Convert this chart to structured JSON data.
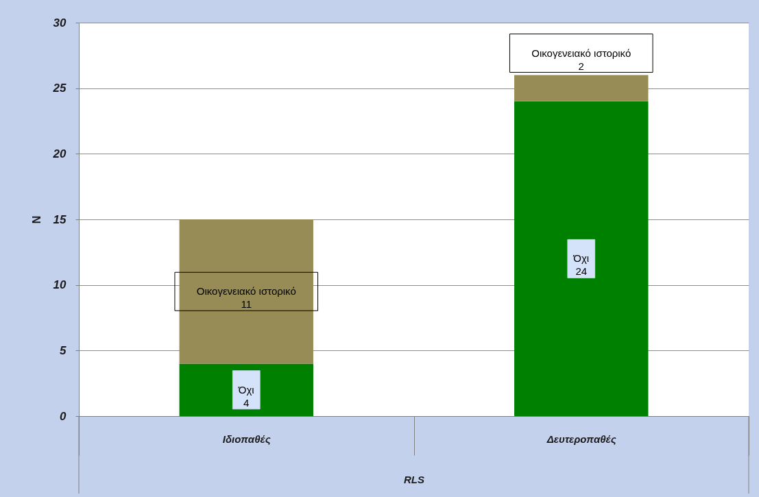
{
  "chart_data": {
    "type": "bar",
    "stacked": true,
    "xlabel": "RLS",
    "ylabel": "N",
    "categories": [
      "Ιδιοπαθές",
      "Δευτεροπαθές"
    ],
    "series": [
      {
        "name": "Όχι",
        "color": "#008000",
        "values": [
          4,
          24
        ]
      },
      {
        "name": "Οικογενειακό ιστορικό",
        "color": "#988c56",
        "values": [
          11,
          2
        ]
      }
    ],
    "ylim": [
      0,
      30
    ],
    "yticks": [
      0,
      5,
      10,
      15,
      20,
      25,
      30
    ],
    "grid": "y",
    "data_labels": true
  }
}
